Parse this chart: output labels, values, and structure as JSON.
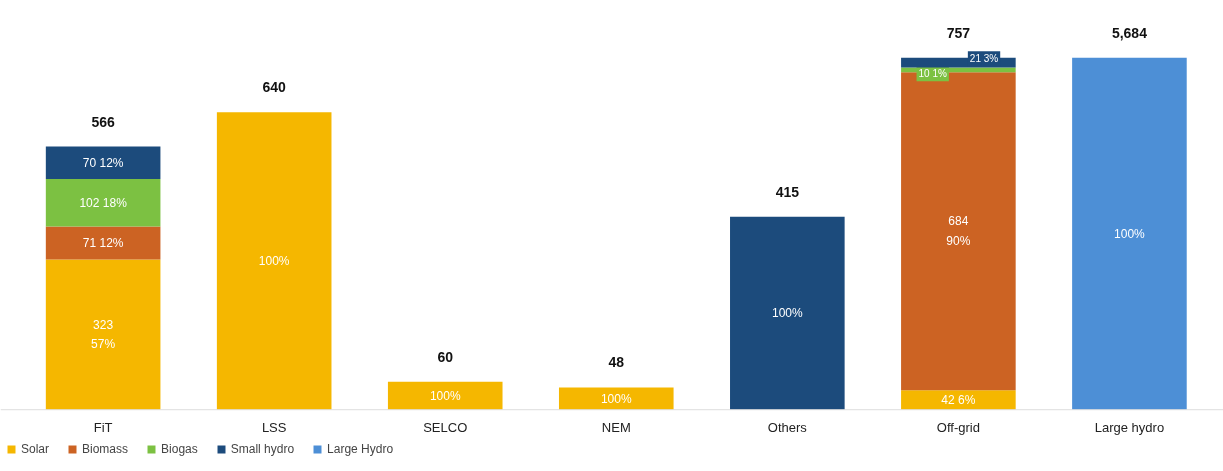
{
  "chart_data": {
    "type": "bar",
    "stacked": true,
    "categories": [
      "FiT",
      "LSS",
      "SELCO",
      "NEM",
      "Others",
      "Off-grid",
      "Large hydro"
    ],
    "tick_labels": "x",
    "legend": "bottom left",
    "series": [
      {
        "name": "Solar",
        "color": "#f5b700",
        "values": [
          323,
          640,
          60,
          48,
          null,
          42,
          null
        ],
        "value_labels": [
          "323\n57%",
          null,
          null,
          null,
          null,
          "42 6%",
          null
        ]
      },
      {
        "name": "Biomass",
        "color": "#cc6323",
        "values": [
          71,
          null,
          null,
          null,
          null,
          684,
          null
        ],
        "value_labels": [
          "71 12%",
          null,
          null,
          null,
          null,
          "684\n90%",
          null
        ]
      },
      {
        "name": "Biogas",
        "color": "#7cc142",
        "values": [
          102,
          null,
          null,
          null,
          null,
          10,
          null
        ],
        "value_labels": [
          "102 18%",
          null,
          null,
          null,
          null,
          "10 1%",
          null
        ]
      },
      {
        "name": "Small hydro",
        "color": "#1c4b7c",
        "values": [
          70,
          null,
          null,
          null,
          415,
          21,
          null
        ],
        "value_labels": [
          "70 12%",
          null,
          null,
          null,
          null,
          "21 3%",
          null
        ]
      },
      {
        "name": "Large Hydro",
        "color": "#4d8fd6",
        "axis": "y2",
        "values": [
          null,
          null,
          null,
          null,
          null,
          null,
          5684
        ],
        "value_labels": [
          null,
          null,
          null,
          null,
          null,
          null,
          "5,684"
        ]
      }
    ],
    "totals": [
      "566",
      "640",
      "60",
      "48",
      "415",
      "757",
      null
    ],
    "annotations": [
      "100%",
      "100%",
      "100%",
      "100%",
      "100%"
    ]
  }
}
